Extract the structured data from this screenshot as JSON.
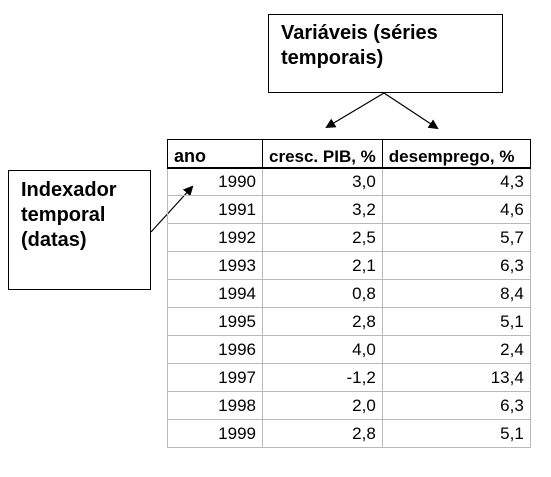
{
  "callouts": {
    "variables": [
      "Variáveis (séries",
      "temporais)"
    ],
    "index": [
      "Indexador",
      "temporal",
      "(datas)"
    ]
  },
  "table": {
    "columns": [
      "ano",
      "cresc. PIB, %",
      "desemprego, %"
    ],
    "rows": [
      {
        "ano": "1990",
        "pib": "3,0",
        "desemprego": "4,3"
      },
      {
        "ano": "1991",
        "pib": "3,2",
        "desemprego": "4,6"
      },
      {
        "ano": "1992",
        "pib": "2,5",
        "desemprego": "5,7"
      },
      {
        "ano": "1993",
        "pib": "2,1",
        "desemprego": "6,3"
      },
      {
        "ano": "1994",
        "pib": "0,8",
        "desemprego": "8,4"
      },
      {
        "ano": "1995",
        "pib": "2,8",
        "desemprego": "5,1"
      },
      {
        "ano": "1996",
        "pib": "4,0",
        "desemprego": "2,4"
      },
      {
        "ano": "1997",
        "pib": "-1,2",
        "desemprego": "13,4"
      },
      {
        "ano": "1998",
        "pib": "2,0",
        "desemprego": "6,3"
      },
      {
        "ano": "1999",
        "pib": "2,8",
        "desemprego": "5,1"
      }
    ]
  }
}
